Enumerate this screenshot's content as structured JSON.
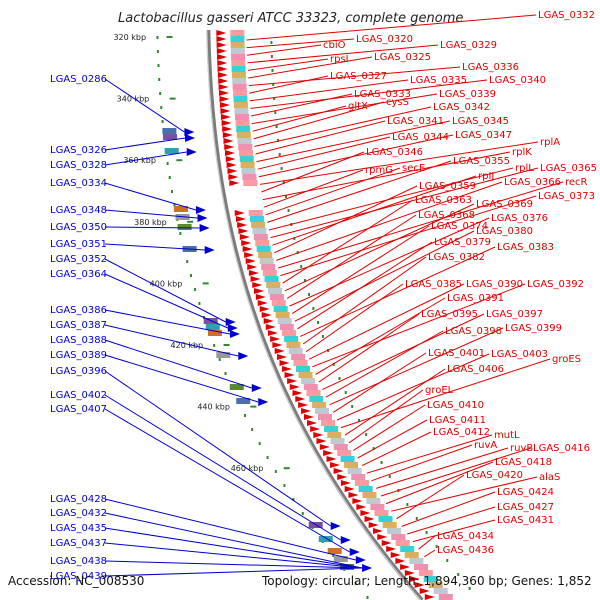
{
  "title": "Lactobacillus gasseri ATCC 33323, complete genome",
  "footer": {
    "accession": "Accession: NC_008530",
    "summary": "Topology: circular; Length: 1,894,360 bp; Genes: 1,852"
  },
  "colors": {
    "forward": "#e00000",
    "reverse": "#0000d0",
    "backbone": "#8a8a8a",
    "tick": "#2f8a2f"
  },
  "ticks": [
    "320 kbp",
    "340 kbp",
    "360 kbp",
    "380 kbp",
    "400 kbp",
    "420 kbp",
    "440 kbp",
    "460 kbp"
  ],
  "reverse_labels": [
    "LGAS_0286",
    "LGAS_0326",
    "LGAS_0328",
    "LGAS_0334",
    "LGAS_0348",
    "LGAS_0350",
    "LGAS_0351",
    "LGAS_0352",
    "LGAS_0364",
    "LGAS_0386",
    "LGAS_0387",
    "LGAS_0388",
    "LGAS_0389",
    "LGAS_0396",
    "LGAS_0402",
    "LGAS_0407",
    "LGAS_0428",
    "LGAS_0432",
    "LGAS_0435",
    "LGAS_0437",
    "LGAS_0438",
    "LGAS_0439"
  ],
  "forward_labels": [
    "LGAS_0332",
    "LGAS_0320",
    "cbiO",
    "LGAS_0329",
    "rpsI",
    "LGAS_0325",
    "LGAS_0336",
    "LGAS_0327",
    "LGAS_0335",
    "LGAS_0340",
    "LGAS_0333",
    "LGAS_0339",
    "gltX",
    "cysS",
    "LGAS_0342",
    "LGAS_0341",
    "LGAS_0345",
    "LGAS_0344",
    "LGAS_0347",
    "rplA",
    "LGAS_0346",
    "rplK",
    "rpmG",
    "secE",
    "LGAS_0355",
    "rplL",
    "LGAS_0365",
    "rpIJ",
    "LGAS_0359",
    "LGAS_0366",
    "recR",
    "LGAS_0373",
    "LGAS_0363",
    "LGAS_0369",
    "LGAS_0368",
    "LGAS_0376",
    "LGAS_0374",
    "LGAS_0380",
    "LGAS_0379",
    "LGAS_0383",
    "LGAS_0382",
    "LGAS_0385",
    "LGAS_0390",
    "LGAS_0392",
    "LGAS_0391",
    "LGAS_0395",
    "LGAS_0397",
    "LGAS_0398",
    "LGAS_0399",
    "LGAS_0401",
    "LGAS_0403",
    "groES",
    "LGAS_0406",
    "groEL",
    "LGAS_0410",
    "LGAS_0411",
    "LGAS_0412",
    "mutL",
    "ruvA",
    "ruvB",
    "LGAS_0416",
    "LGAS_0418",
    "alaS",
    "LGAS_0420",
    "LGAS_0424",
    "LGAS_0427",
    "LGAS_0431",
    "LGAS_0434",
    "LGAS_0436"
  ]
}
